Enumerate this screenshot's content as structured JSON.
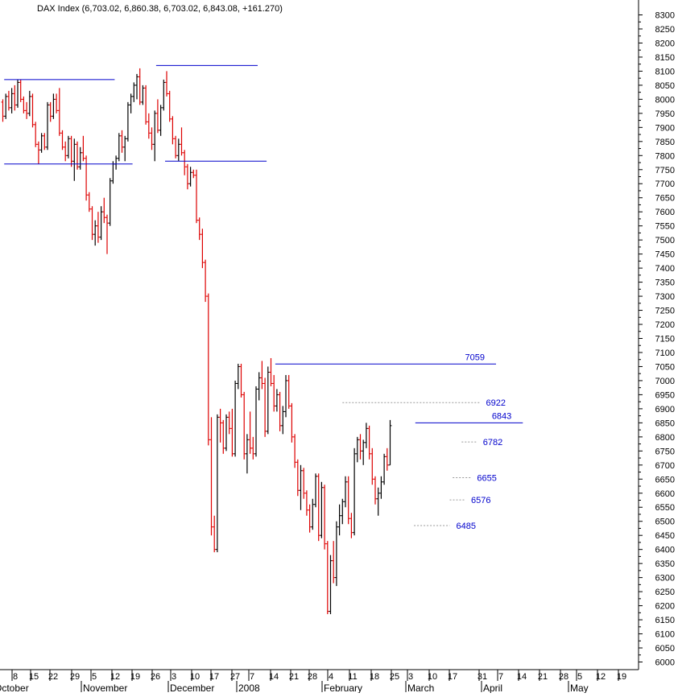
{
  "header": {
    "title": "DAX Index (6,703.02, 6,860.38, 6,703.02, 6,843.08, +161.270)"
  },
  "chart_data": {
    "type": "bar",
    "style": "ohlc",
    "title": "DAX Index (6,703.02, 6,860.38, 6,703.02, 6,843.08, +161.270)",
    "y_axis": {
      "position": "right",
      "ylim": [
        6000,
        8300
      ],
      "ticks": [
        6000,
        6050,
        6100,
        6150,
        6200,
        6250,
        6300,
        6350,
        6400,
        6450,
        6500,
        6550,
        6600,
        6650,
        6700,
        6750,
        6800,
        6850,
        6900,
        6950,
        7000,
        7050,
        7100,
        7150,
        7200,
        7250,
        7300,
        7350,
        7400,
        7450,
        7500,
        7550,
        7600,
        7650,
        7700,
        7750,
        7800,
        7850,
        7900,
        7950,
        8000,
        8050,
        8100,
        8150,
        8200,
        8250,
        8300
      ]
    },
    "x_axis": {
      "date_ticks": [
        "8",
        "15",
        "22",
        "29",
        "5",
        "12",
        "19",
        "26",
        "3",
        "10",
        "17",
        "27",
        "7",
        "14",
        "21",
        "28",
        "4",
        "11",
        "18",
        "25",
        "3",
        "10",
        "17",
        "31",
        "7",
        "14",
        "21",
        "28",
        "5",
        "12",
        "19"
      ],
      "month_labels": [
        "October",
        "November",
        "December",
        "2008",
        "February",
        "March",
        "April",
        "May"
      ]
    },
    "colors": {
      "up": "#000000",
      "down": "#dd0000",
      "level_line": "#0000cc",
      "dotted_line": "#999999",
      "label": "#0000cc"
    },
    "bars": [
      [
        7990,
        8000,
        7920,
        7940
      ],
      [
        7940,
        8020,
        7930,
        8010
      ],
      [
        8010,
        8030,
        7960,
        7970
      ],
      [
        7970,
        8040,
        7950,
        8020
      ],
      [
        8020,
        8050,
        7960,
        7980
      ],
      [
        7980,
        8070,
        7970,
        8060
      ],
      [
        8060,
        8070,
        7990,
        8000
      ],
      [
        8000,
        8010,
        7950,
        7960
      ],
      [
        7960,
        7990,
        7930,
        7950
      ],
      [
        7950,
        8030,
        7940,
        8010
      ],
      [
        8010,
        8020,
        7900,
        7910
      ],
      [
        7910,
        7920,
        7830,
        7840
      ],
      [
        7840,
        7850,
        7770,
        7820
      ],
      [
        7820,
        7880,
        7810,
        7870
      ],
      [
        7870,
        7880,
        7820,
        7830
      ],
      [
        7830,
        7990,
        7820,
        7980
      ],
      [
        7980,
        7990,
        7920,
        7940
      ],
      [
        7940,
        8020,
        7930,
        8000
      ],
      [
        8000,
        8020,
        7950,
        7960
      ],
      [
        7960,
        8040,
        7870,
        7880
      ],
      [
        7880,
        7890,
        7820,
        7830
      ],
      [
        7830,
        7850,
        7780,
        7800
      ],
      [
        7800,
        7870,
        7790,
        7860
      ],
      [
        7860,
        7870,
        7760,
        7780
      ],
      [
        7780,
        7860,
        7710,
        7840
      ],
      [
        7840,
        7850,
        7750,
        7760
      ],
      [
        7760,
        7830,
        7750,
        7810
      ],
      [
        7810,
        7870,
        7780,
        7790
      ],
      [
        7790,
        7800,
        7640,
        7660
      ],
      [
        7660,
        7670,
        7600,
        7610
      ],
      [
        7610,
        7620,
        7500,
        7520
      ],
      [
        7520,
        7570,
        7480,
        7550
      ],
      [
        7550,
        7600,
        7490,
        7510
      ],
      [
        7510,
        7620,
        7500,
        7600
      ],
      [
        7600,
        7650,
        7560,
        7580
      ],
      [
        7580,
        7590,
        7450,
        7560
      ],
      [
        7560,
        7720,
        7550,
        7710
      ],
      [
        7710,
        7780,
        7700,
        7770
      ],
      [
        7770,
        7800,
        7750,
        7790
      ],
      [
        7790,
        7880,
        7780,
        7870
      ],
      [
        7870,
        7890,
        7810,
        7830
      ],
      [
        7830,
        7870,
        7780,
        7860
      ],
      [
        7860,
        7990,
        7850,
        7980
      ],
      [
        7980,
        8020,
        7950,
        8010
      ],
      [
        8010,
        8060,
        7990,
        8050
      ],
      [
        8050,
        8090,
        8000,
        8080
      ],
      [
        8080,
        8110,
        7980,
        7990
      ],
      [
        7990,
        8050,
        7980,
        8040
      ],
      [
        8040,
        8050,
        7910,
        7920
      ],
      [
        7920,
        7950,
        7860,
        7880
      ],
      [
        7880,
        7900,
        7820,
        7840
      ],
      [
        7840,
        7960,
        7780,
        7950
      ],
      [
        7950,
        8000,
        7880,
        7890
      ],
      [
        7890,
        7980,
        7870,
        7970
      ],
      [
        7970,
        8070,
        7960,
        8060
      ],
      [
        8060,
        8100,
        8010,
        8020
      ],
      [
        8020,
        8030,
        7920,
        7930
      ],
      [
        7930,
        7940,
        7840,
        7860
      ],
      [
        7860,
        7870,
        7790,
        7800
      ],
      [
        7800,
        7860,
        7780,
        7840
      ],
      [
        7840,
        7900,
        7800,
        7810
      ],
      [
        7810,
        7820,
        7730,
        7760
      ],
      [
        7760,
        7770,
        7680,
        7700
      ],
      [
        7700,
        7760,
        7690,
        7740
      ],
      [
        7740,
        7750,
        7720,
        7730
      ],
      [
        7730,
        7750,
        7560,
        7570
      ],
      [
        7570,
        7580,
        7500,
        7520
      ],
      [
        7520,
        7540,
        7400,
        7420
      ],
      [
        7420,
        7430,
        7280,
        7300
      ],
      [
        7300,
        7310,
        6770,
        6790
      ],
      [
        6790,
        6870,
        6450,
        6480
      ],
      [
        6480,
        6520,
        6390,
        6400
      ],
      [
        6400,
        6880,
        6390,
        6870
      ],
      [
        6870,
        6900,
        6780,
        6850
      ],
      [
        6850,
        6860,
        6740,
        6760
      ],
      [
        6760,
        6880,
        6750,
        6870
      ],
      [
        6870,
        6890,
        6810,
        6830
      ],
      [
        6830,
        6900,
        6730,
        6740
      ],
      [
        6740,
        7000,
        6730,
        6990
      ],
      [
        6990,
        7060,
        6970,
        7050
      ],
      [
        7050,
        7060,
        6940,
        6950
      ],
      [
        6950,
        6960,
        6720,
        6740
      ],
      [
        6740,
        6810,
        6670,
        6790
      ],
      [
        6790,
        6890,
        6740,
        6760
      ],
      [
        6760,
        6800,
        6720,
        6740
      ],
      [
        6740,
        6980,
        6730,
        6970
      ],
      [
        6970,
        7030,
        6930,
        7010
      ],
      [
        7010,
        7070,
        6970,
        6990
      ],
      [
        6990,
        7010,
        6800,
        6820
      ],
      [
        6820,
        7050,
        6810,
        7030
      ],
      [
        7030,
        7080,
        6980,
        6990
      ],
      [
        6990,
        7020,
        6890,
        6910
      ],
      [
        6910,
        6970,
        6890,
        6950
      ],
      [
        6950,
        6960,
        6820,
        6840
      ],
      [
        6840,
        6910,
        6810,
        6890
      ],
      [
        6890,
        7020,
        6870,
        7000
      ],
      [
        7000,
        7020,
        6900,
        6910
      ],
      [
        6910,
        6920,
        6780,
        6800
      ],
      [
        6800,
        6810,
        6690,
        6710
      ],
      [
        6710,
        6720,
        6590,
        6610
      ],
      [
        6610,
        6700,
        6540,
        6680
      ],
      [
        6680,
        6690,
        6580,
        6600
      ],
      [
        6600,
        6610,
        6520,
        6540
      ],
      [
        6540,
        6560,
        6460,
        6480
      ],
      [
        6480,
        6580,
        6470,
        6560
      ],
      [
        6560,
        6670,
        6550,
        6660
      ],
      [
        6660,
        6670,
        6430,
        6450
      ],
      [
        6450,
        6640,
        6440,
        6620
      ],
      [
        6620,
        6630,
        6400,
        6420
      ],
      [
        6420,
        6430,
        6170,
        6180
      ],
      [
        6180,
        6380,
        6170,
        6360
      ],
      [
        6360,
        6430,
        6280,
        6300
      ],
      [
        6300,
        6500,
        6270,
        6480
      ],
      [
        6480,
        6560,
        6450,
        6520
      ],
      [
        6520,
        6580,
        6490,
        6570
      ],
      [
        6570,
        6660,
        6550,
        6640
      ],
      [
        6640,
        6660,
        6490,
        6510
      ],
      [
        6510,
        6530,
        6440,
        6460
      ],
      [
        6460,
        6760,
        6450,
        6740
      ],
      [
        6740,
        6800,
        6710,
        6790
      ],
      [
        6790,
        6810,
        6720,
        6750
      ],
      [
        6750,
        6790,
        6700,
        6780
      ],
      [
        6780,
        6850,
        6760,
        6830
      ],
      [
        6830,
        6840,
        6720,
        6740
      ],
      [
        6740,
        6760,
        6630,
        6650
      ],
      [
        6650,
        6660,
        6560,
        6580
      ],
      [
        6580,
        6620,
        6520,
        6600
      ],
      [
        6600,
        6660,
        6580,
        6640
      ],
      [
        6640,
        6740,
        6630,
        6730
      ],
      [
        6730,
        6760,
        6680,
        6700
      ],
      [
        6700,
        6860,
        6700,
        6840
      ]
    ],
    "level_lines": [
      {
        "name": "resistance-oct",
        "value": 8070,
        "from_bar": 1,
        "to_bar": 37,
        "label": ""
      },
      {
        "name": "support-nov",
        "value": 7770,
        "from_bar": 1,
        "to_bar": 43,
        "label": ""
      },
      {
        "name": "resistance-dec",
        "value": 8120,
        "from_bar": 52,
        "to_bar": 85,
        "label": ""
      },
      {
        "name": "support-dec",
        "value": 7780,
        "from_bar": 55,
        "to_bar": 88,
        "label": ""
      },
      {
        "name": "resistance-feb",
        "value": 7059,
        "from_bar": 92,
        "to_bar": 165,
        "label": "7059"
      },
      {
        "name": "resistance-apr",
        "value": 6850,
        "from_bar": 139,
        "to_bar": 174,
        "label": "6843"
      }
    ],
    "dotted_levels": [
      {
        "value": 6922,
        "from_bar": 114,
        "to_bar": 160,
        "label": "6922"
      },
      {
        "value": 6782,
        "from_bar": 154,
        "to_bar": 159,
        "label": "6782"
      },
      {
        "value": 6655,
        "from_bar": 151,
        "to_bar": 157,
        "label": "6655"
      },
      {
        "value": 6576,
        "from_bar": 150,
        "to_bar": 155,
        "label": "6576"
      },
      {
        "value": 6485,
        "from_bar": 138,
        "to_bar": 150,
        "label": "6485"
      }
    ]
  }
}
